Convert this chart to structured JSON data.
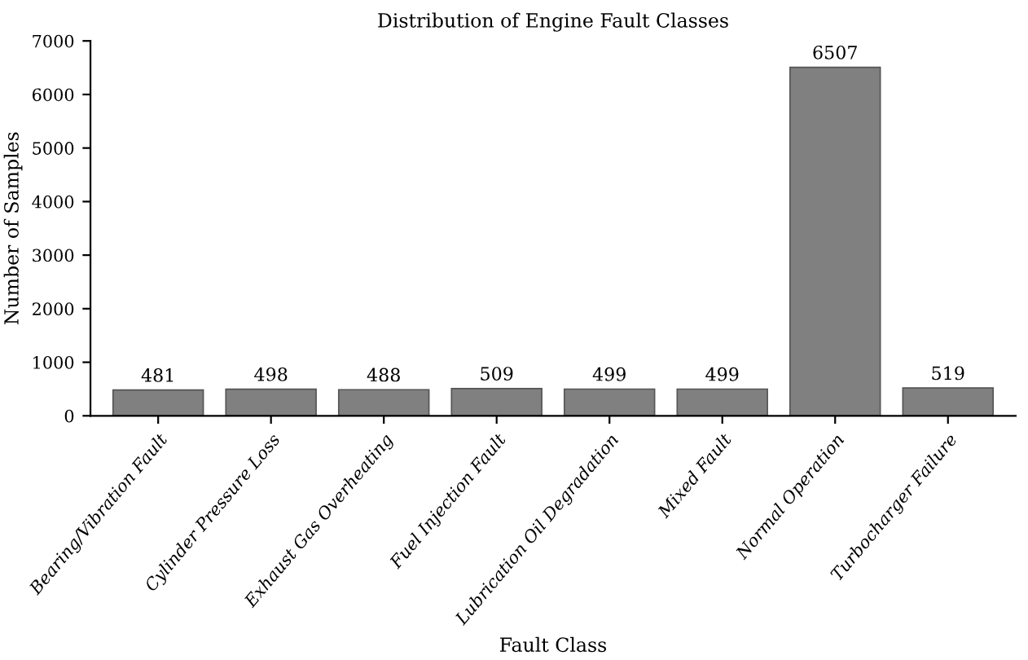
{
  "chart_data": {
    "type": "bar",
    "title": "Distribution of Engine Fault Classes",
    "xlabel": "Fault Class",
    "ylabel": "Number of Samples",
    "categories": [
      "Bearing/Vibration Fault",
      "Cylinder Pressure Loss",
      "Exhaust Gas Overheating",
      "Fuel Injection Fault",
      "Lubrication Oil Degradation",
      "Mixed Fault",
      "Normal Operation",
      "Turbocharger Failure"
    ],
    "values": [
      481,
      498,
      488,
      509,
      499,
      499,
      6507,
      519
    ],
    "color": "#808080",
    "ylim": [
      0,
      7000
    ],
    "yticks": [
      0,
      1000,
      2000,
      3000,
      4000,
      5000,
      6000,
      7000
    ],
    "grid": false,
    "data_labels": true
  }
}
